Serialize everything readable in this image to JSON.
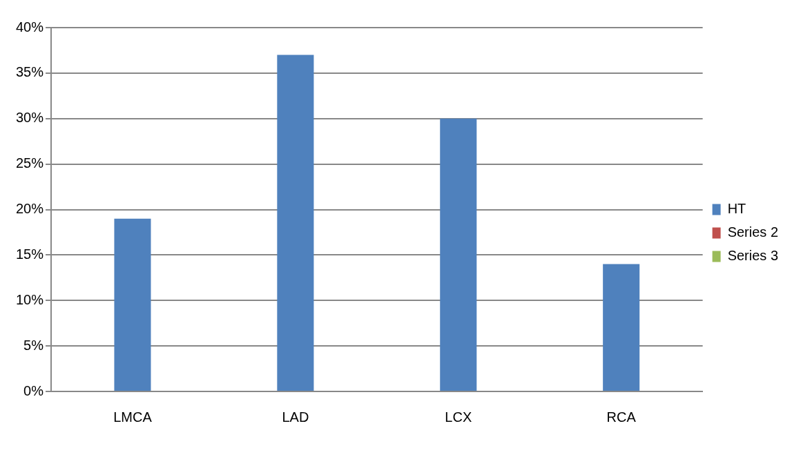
{
  "chart_data": {
    "type": "bar",
    "categories": [
      "LMCA",
      "LAD",
      "LCX",
      "RCA"
    ],
    "series": [
      {
        "name": "HT",
        "color": "#4f81bd",
        "values": [
          19,
          37,
          30,
          14
        ]
      },
      {
        "name": "Series 2",
        "color": "#c0504d",
        "values": [
          null,
          null,
          null,
          null
        ]
      },
      {
        "name": "Series 3",
        "color": "#9bbb59",
        "values": [
          null,
          null,
          null,
          null
        ]
      }
    ],
    "ylim": [
      0,
      40
    ],
    "yticks": [
      {
        "value": 0,
        "label": "0%"
      },
      {
        "value": 5,
        "label": "5%"
      },
      {
        "value": 10,
        "label": "10%"
      },
      {
        "value": 15,
        "label": "15%"
      },
      {
        "value": 20,
        "label": "20%"
      },
      {
        "value": 25,
        "label": "25%"
      },
      {
        "value": 30,
        "label": "30%"
      },
      {
        "value": 35,
        "label": "35%"
      },
      {
        "value": 40,
        "label": "40%"
      }
    ],
    "grid": "y",
    "legend": "right"
  }
}
